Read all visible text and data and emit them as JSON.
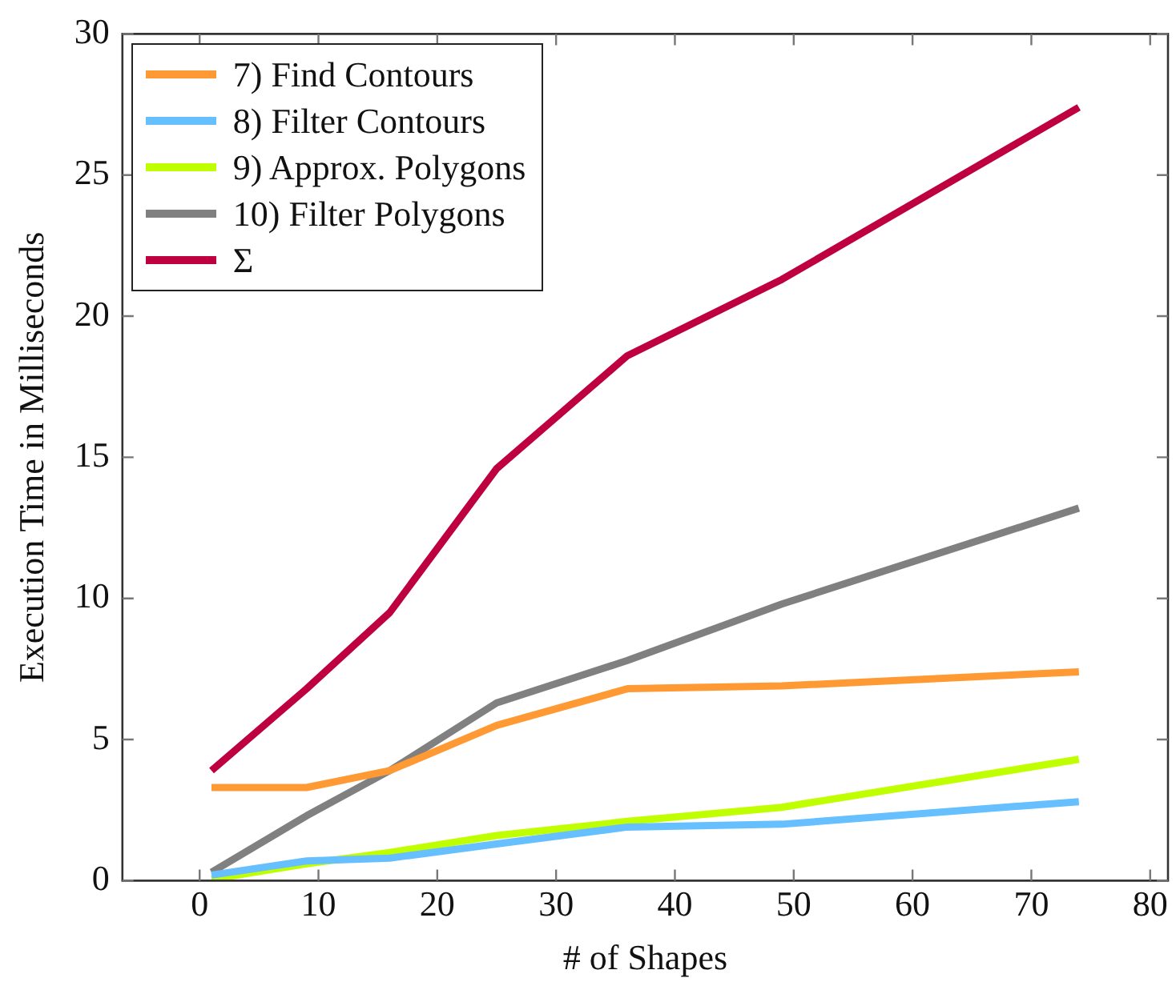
{
  "chart_data": {
    "type": "line",
    "xlabel": "# of Shapes",
    "ylabel": "Execution Time in Milliseconds",
    "x": [
      1,
      9,
      16,
      25,
      36,
      49,
      74
    ],
    "series": [
      {
        "name": "7) Find Contours",
        "color": "#ff9933",
        "values": [
          3.3,
          3.3,
          3.9,
          5.5,
          6.8,
          6.9,
          7.4
        ]
      },
      {
        "name": "8) Filter Contours",
        "color": "#66bfff",
        "values": [
          0.2,
          0.7,
          0.8,
          1.3,
          1.9,
          2.0,
          2.8
        ]
      },
      {
        "name": "9) Approx. Polygons",
        "color": "#bfff00",
        "values": [
          0.05,
          0.6,
          1.0,
          1.6,
          2.1,
          2.6,
          4.3
        ]
      },
      {
        "name": "10) Filter Polygons",
        "color": "#808080",
        "values": [
          0.3,
          2.3,
          3.9,
          6.3,
          7.8,
          9.8,
          13.2
        ]
      },
      {
        "name": "Σ",
        "color": "#bf0040",
        "values": [
          3.9,
          6.8,
          9.5,
          14.6,
          18.6,
          21.3,
          27.4
        ]
      }
    ],
    "xlim": [
      -6.5,
      81.5
    ],
    "xticks": [
      0,
      10,
      20,
      30,
      40,
      50,
      60,
      70,
      80
    ],
    "ylim": [
      0,
      30
    ],
    "yticks": [
      0,
      5,
      10,
      15,
      20,
      25,
      30
    ],
    "legend": "top left",
    "marker": "none",
    "line_style": "solid"
  }
}
